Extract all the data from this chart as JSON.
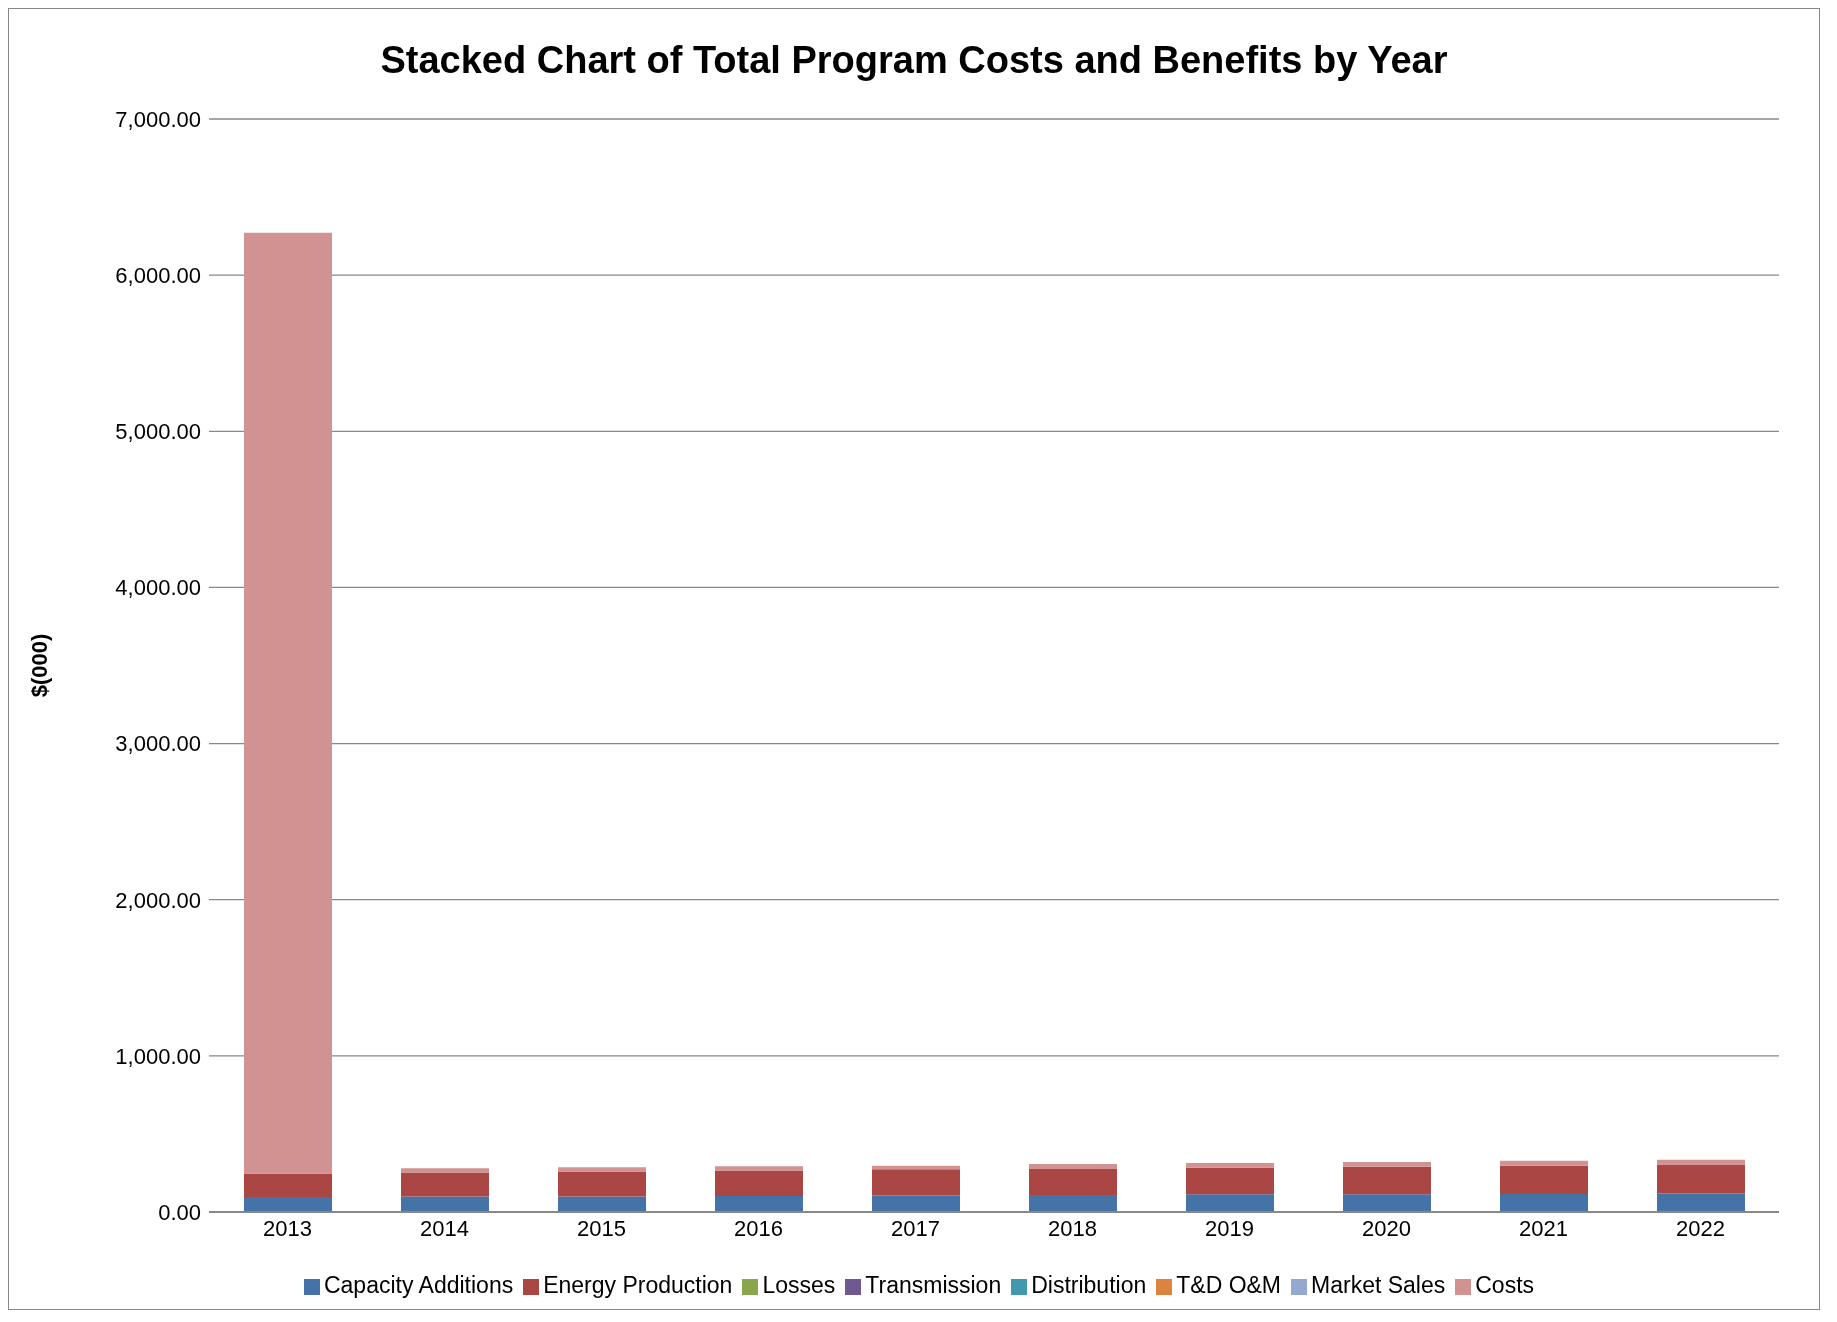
{
  "chart_data": {
    "type": "bar",
    "title": "Stacked Chart of Total Program Costs and Benefits by Year",
    "ylabel": "$(000)",
    "stacked": true,
    "grid": "y",
    "legend": "bottom",
    "categories": [
      "2013",
      "2014",
      "2015",
      "2016",
      "2017",
      "2018",
      "2019",
      "2020",
      "2021",
      "2022"
    ],
    "ylim": [
      0,
      7000
    ],
    "yticks": [
      {
        "value": 0,
        "label": "0.00"
      },
      {
        "value": 1000,
        "label": "1,000.00"
      },
      {
        "value": 2000,
        "label": "2,000.00"
      },
      {
        "value": 3000,
        "label": "3,000.00"
      },
      {
        "value": 4000,
        "label": "4,000.00"
      },
      {
        "value": 5000,
        "label": "5,000.00"
      },
      {
        "value": 6000,
        "label": "6,000.00"
      },
      {
        "value": 7000,
        "label": "7,000.00"
      }
    ],
    "series": [
      {
        "name": "Capacity Additions",
        "color": "#4572a7",
        "values": [
          96,
          99,
          99,
          102,
          106,
          109,
          113,
          113,
          116,
          119
        ]
      },
      {
        "name": "Energy Production",
        "color": "#aa4643",
        "values": [
          150,
          154,
          160,
          164,
          167,
          167,
          170,
          177,
          181,
          185
        ]
      },
      {
        "name": "Losses",
        "color": "#89a54e",
        "values": [
          0,
          0,
          0,
          0,
          0,
          0,
          0,
          0,
          0,
          0
        ]
      },
      {
        "name": "Transmission",
        "color": "#71588f",
        "values": [
          0,
          0,
          0,
          0,
          0,
          0,
          0,
          0,
          0,
          0
        ]
      },
      {
        "name": "Distribution",
        "color": "#4198af",
        "values": [
          0,
          0,
          0,
          0,
          0,
          0,
          0,
          0,
          0,
          0
        ]
      },
      {
        "name": "T&D O&M",
        "color": "#db843d",
        "values": [
          0,
          0,
          0,
          0,
          0,
          0,
          0,
          0,
          0,
          0
        ]
      },
      {
        "name": "Market Sales",
        "color": "#93a9cf",
        "values": [
          0,
          0,
          0,
          0,
          0,
          0,
          0,
          0,
          0,
          0
        ]
      },
      {
        "name": "Costs",
        "color": "#d19392",
        "values": [
          6025,
          27,
          28,
          27,
          24,
          31,
          31,
          31,
          31,
          30
        ]
      }
    ]
  }
}
